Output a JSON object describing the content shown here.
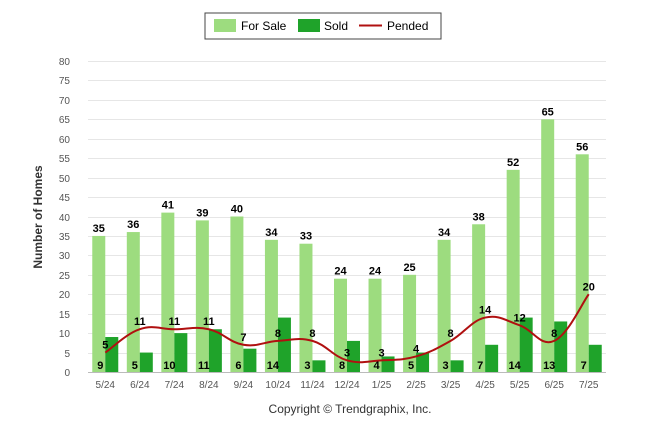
{
  "chart_data": {
    "type": "bar",
    "categories": [
      "5/24",
      "6/24",
      "7/24",
      "8/24",
      "9/24",
      "10/24",
      "11/24",
      "12/24",
      "1/25",
      "2/25",
      "3/25",
      "4/25",
      "5/25",
      "6/25",
      "7/25"
    ],
    "series": [
      {
        "name": "For Sale",
        "type": "bar",
        "color": "#9ddc7f",
        "values": [
          35,
          36,
          41,
          39,
          40,
          34,
          33,
          24,
          24,
          25,
          34,
          38,
          52,
          65,
          56
        ]
      },
      {
        "name": "Sold",
        "type": "bar",
        "color": "#1fa32a",
        "values": [
          9,
          5,
          10,
          11,
          6,
          14,
          3,
          8,
          4,
          5,
          3,
          7,
          14,
          13,
          7
        ]
      },
      {
        "name": "Pended",
        "type": "line",
        "color": "#b01010",
        "values": [
          5,
          11,
          11,
          11,
          7,
          8,
          8,
          3,
          3,
          4,
          8,
          14,
          12,
          8,
          20
        ]
      }
    ],
    "title": "",
    "xlabel": "",
    "ylabel": "Number of Homes",
    "ylim": [
      0,
      80
    ],
    "yticks": [
      0,
      5,
      10,
      15,
      20,
      25,
      30,
      35,
      40,
      45,
      50,
      55,
      60,
      65,
      70,
      75,
      80
    ],
    "grid": true,
    "legend": "top-center",
    "footer": "Copyright © Trendgraphix, Inc."
  }
}
